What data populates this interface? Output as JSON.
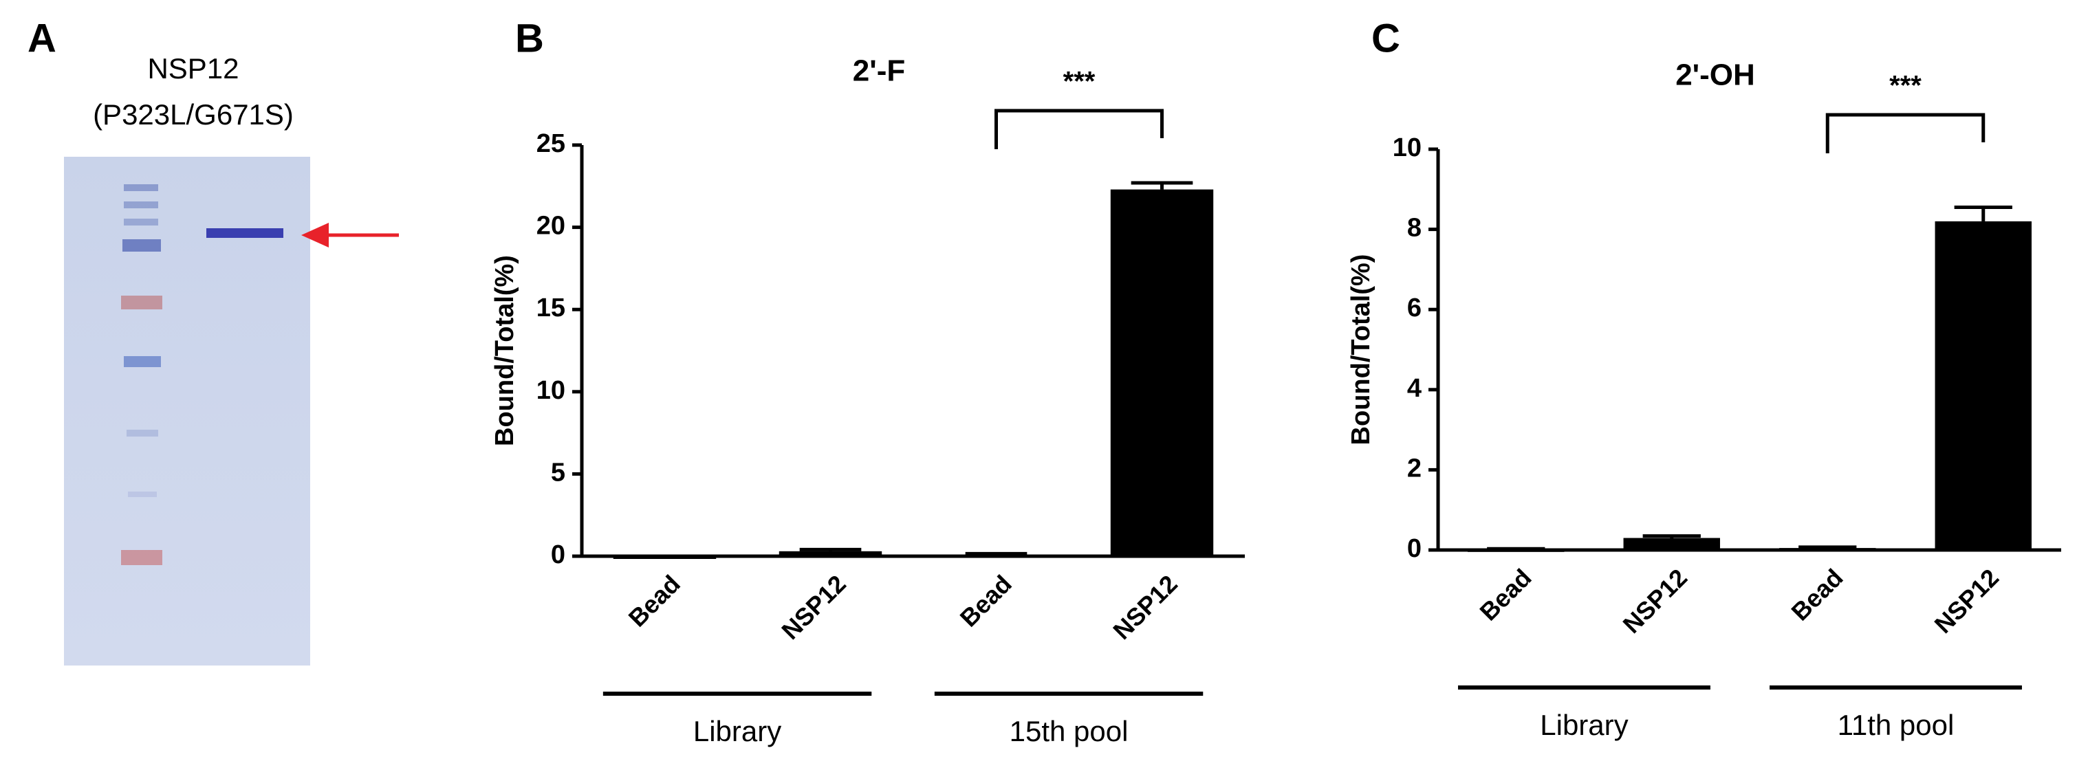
{
  "figure_a": {
    "panel_label": "A",
    "title_lines": [
      "NSP12",
      "(P323L/G671S)"
    ]
  },
  "chart_data": [
    {
      "type": "bar",
      "panel_label": "B",
      "title": "2'-F",
      "ylabel": "Bound/Total(%)",
      "categories": [
        "Bead",
        "NSP12",
        "Bead",
        "NSP12"
      ],
      "values": [
        0,
        0.3,
        0.1,
        22.3
      ],
      "errors": [
        0,
        0.1,
        0.05,
        0.4
      ],
      "color": "#000000",
      "ylim": [
        0,
        25
      ],
      "yticks": [
        0,
        5,
        10,
        15,
        20,
        25
      ],
      "groups": [
        "Library",
        "15th pool"
      ],
      "annotations": [
        "***"
      ]
    },
    {
      "type": "bar",
      "panel_label": "C",
      "title": "2'-OH",
      "ylabel": "Bound/Total(%)",
      "categories": [
        "Bead",
        "NSP12",
        "Bead",
        "NSP12"
      ],
      "values": [
        0.02,
        0.3,
        0.05,
        8.2
      ],
      "errors": [
        0.01,
        0.05,
        0.02,
        0.35
      ],
      "color": "#000000",
      "ylim": [
        0,
        10
      ],
      "yticks": [
        0,
        2,
        4,
        6,
        8,
        10
      ],
      "groups": [
        "Library",
        "11th pool"
      ],
      "annotations": [
        "***"
      ]
    }
  ]
}
